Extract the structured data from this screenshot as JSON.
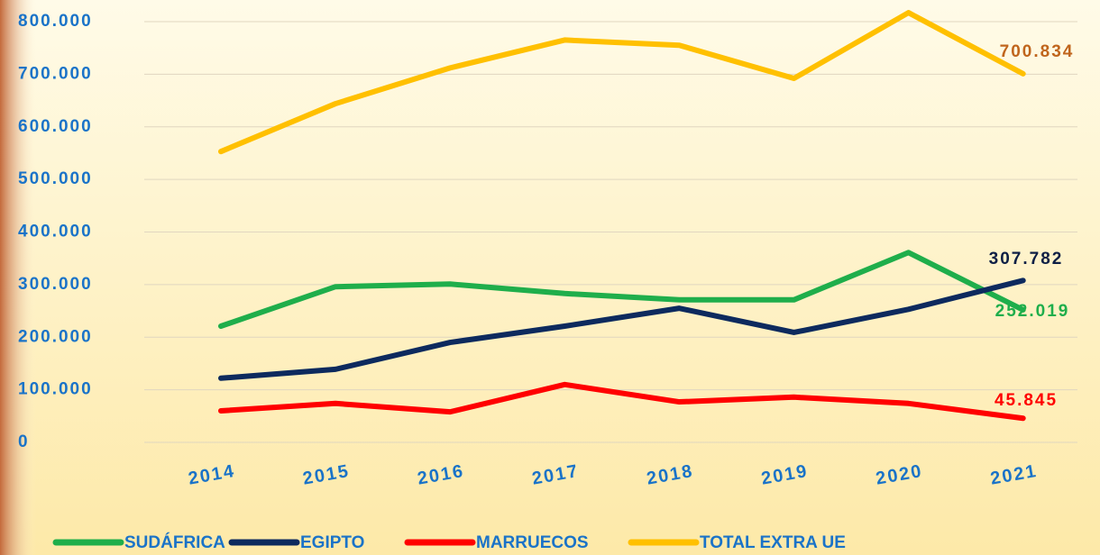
{
  "chart_data": {
    "type": "line",
    "categories": [
      "2014",
      "2015",
      "2016",
      "2017",
      "2018",
      "2019",
      "2020",
      "2021"
    ],
    "series": [
      {
        "name": "SUDÁFRICA",
        "color": "#1fae4b",
        "label_color": "#1fae4b",
        "values": [
          221000,
          296000,
          301000,
          283000,
          271000,
          271000,
          361000,
          252019
        ],
        "value_labels": [
          null,
          null,
          null,
          null,
          null,
          null,
          null,
          "252.019"
        ]
      },
      {
        "name": "EGIPTO",
        "color": "#0d2a5e",
        "label_color": "#0d1f45",
        "values": [
          122000,
          139000,
          190000,
          221000,
          255000,
          209000,
          253000,
          307782
        ],
        "value_labels": [
          null,
          null,
          null,
          null,
          null,
          null,
          null,
          "307.782"
        ]
      },
      {
        "name": "MARRUECOS",
        "color": "#ff0000",
        "label_color": "#ff0000",
        "values": [
          60000,
          74000,
          58000,
          110000,
          77000,
          86000,
          74000,
          45845
        ],
        "value_labels": [
          null,
          null,
          null,
          null,
          null,
          null,
          null,
          "45.845"
        ]
      },
      {
        "name": "TOTAL EXTRA UE",
        "color": "#ffc000",
        "label_color": "#c0651c",
        "values": [
          553000,
          644000,
          712000,
          765000,
          755000,
          692000,
          817000,
          700834
        ],
        "value_labels": [
          null,
          null,
          null,
          null,
          null,
          null,
          null,
          "700.834"
        ]
      }
    ],
    "ylim": [
      0,
      800000
    ],
    "yticks": [
      0,
      {
        "value": 100000,
        "label": "100.000"
      },
      {
        "value": 200000,
        "label": "200.000"
      },
      {
        "value": 300000,
        "label": "300.000"
      },
      {
        "value": 400000,
        "label": "400.000"
      },
      {
        "value": 500000,
        "label": "500.000"
      },
      {
        "value": 600000,
        "label": "600.000"
      },
      {
        "value": 700000,
        "label": "700.000"
      },
      {
        "value": 800000,
        "label": "800.000"
      }
    ],
    "grid": true,
    "legend": "bottom"
  }
}
